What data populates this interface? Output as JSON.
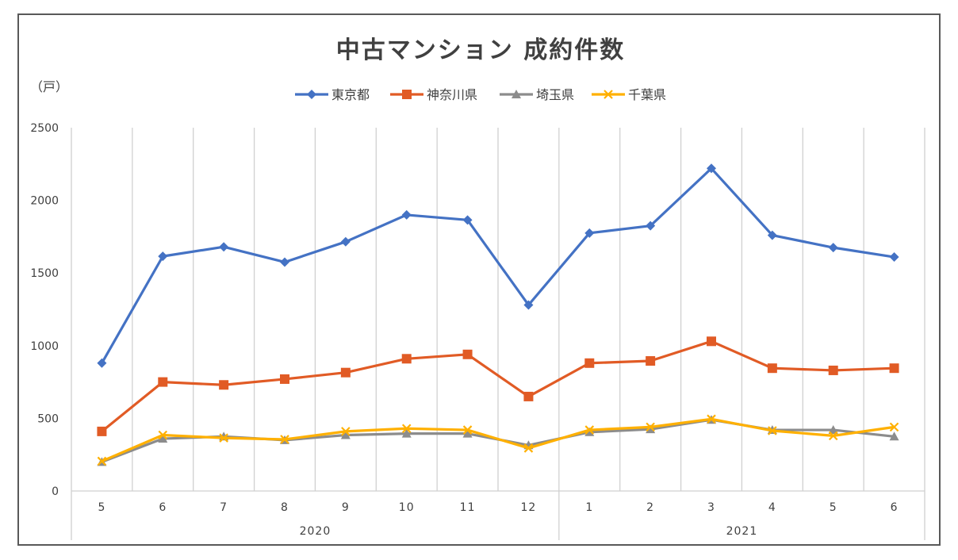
{
  "chart_data": {
    "type": "line",
    "title": "中古マンション 成約件数",
    "ylabel": "（戸）",
    "ylim": [
      0,
      2500
    ],
    "yticks": [
      0,
      500,
      1000,
      1500,
      2000,
      2500
    ],
    "categories": [
      "5",
      "6",
      "7",
      "8",
      "9",
      "10",
      "11",
      "12",
      "1",
      "2",
      "3",
      "4",
      "5",
      "6"
    ],
    "year_groups": [
      {
        "label": "2020",
        "start": 0,
        "end": 7
      },
      {
        "label": "2021",
        "start": 8,
        "end": 13
      }
    ],
    "legend_position": "top",
    "grid": "vertical",
    "series": [
      {
        "name": "東京都",
        "color": "#4472C4",
        "marker": "diamond",
        "values": [
          880,
          1615,
          1680,
          1575,
          1715,
          1900,
          1865,
          1280,
          1775,
          1825,
          2220,
          1760,
          1675,
          1610
        ]
      },
      {
        "name": "神奈川県",
        "color": "#E15B25",
        "marker": "square",
        "values": [
          410,
          750,
          730,
          770,
          815,
          910,
          940,
          650,
          880,
          895,
          1030,
          845,
          830,
          845
        ]
      },
      {
        "name": "埼玉県",
        "color": "#8C8C8C",
        "marker": "triangle",
        "values": [
          200,
          360,
          375,
          350,
          385,
          395,
          395,
          315,
          405,
          425,
          490,
          420,
          420,
          375
        ]
      },
      {
        "name": "千葉県",
        "color": "#FFB000",
        "marker": "x",
        "values": [
          205,
          385,
          365,
          355,
          410,
          430,
          420,
          295,
          420,
          440,
          495,
          415,
          380,
          440
        ]
      }
    ]
  }
}
